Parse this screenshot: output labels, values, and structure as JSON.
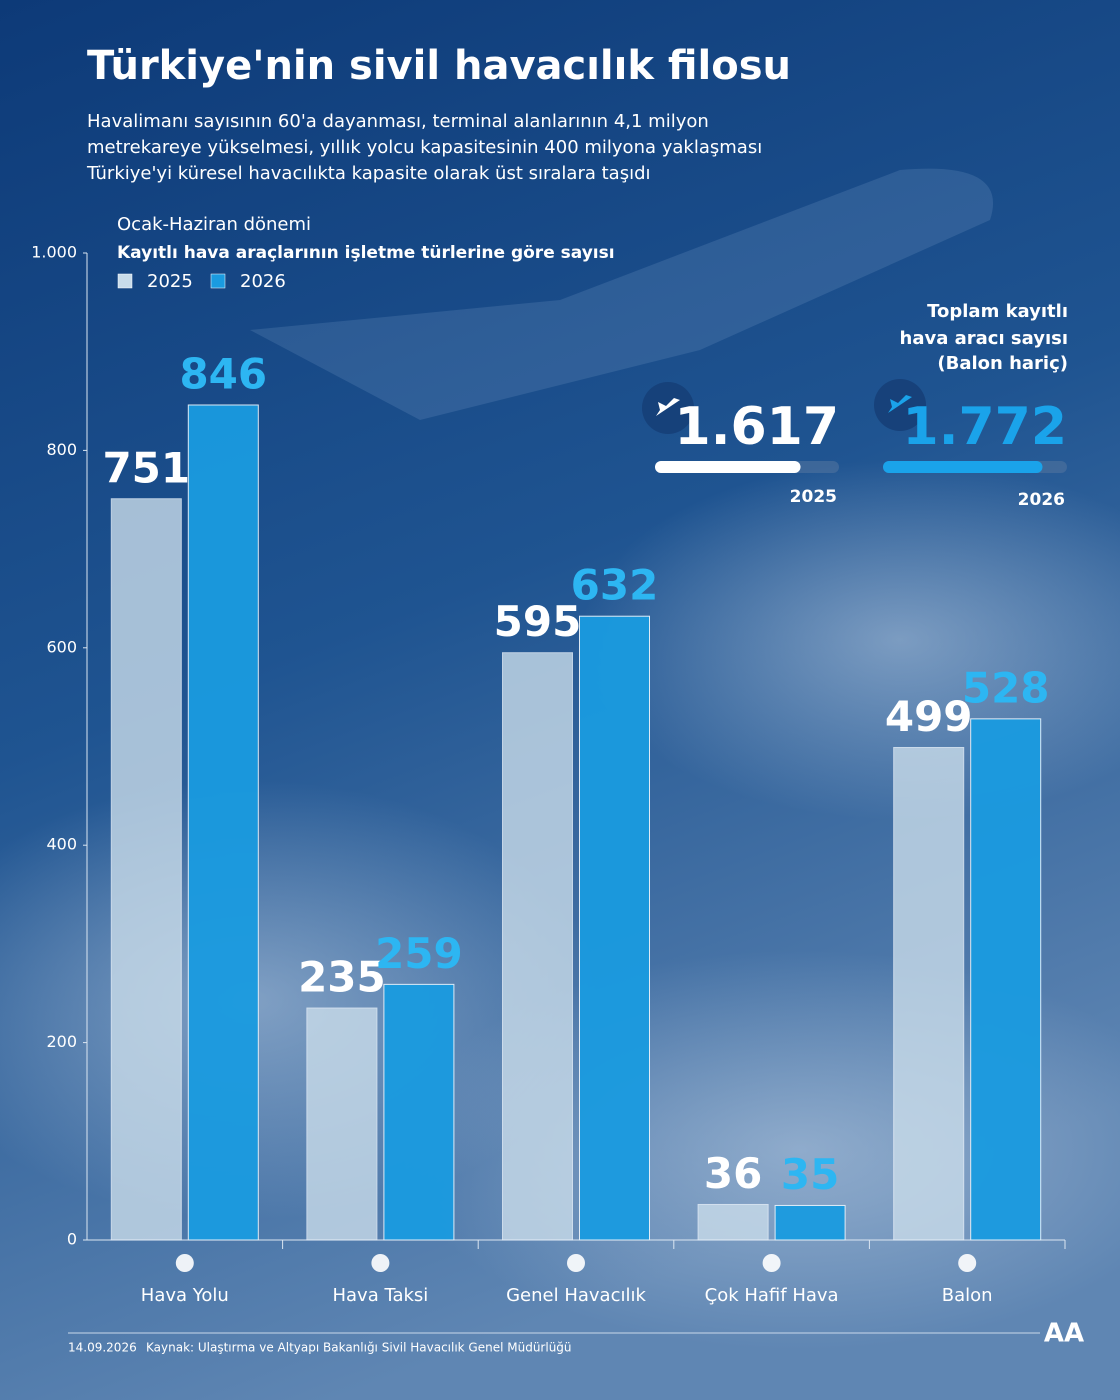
{
  "chart_data": {
    "type": "bar",
    "title": "Türkiye'nin sivil havacılık filosu",
    "subtitle": [
      "Havalimanı sayısının 60'a dayanması, terminal alanlarının 4,1 milyon",
      "metrekareye yükselmesi, yıllık yolcu kapasitesinin 400 milyona yaklaşması",
      "Türkiye'yi küresel havacılıkta kapasite olarak üst sıralara taşıdı"
    ],
    "period": "Ocak-Haziran dönemi",
    "chart_title": "Kayıtlı hava araçlarının işletme türlerine göre sayısı",
    "categories": [
      "Hava Yolu",
      "Hava Taksi",
      "Genel Havacılık",
      "Çok Hafif Hava",
      "Balon"
    ],
    "series": [
      {
        "name": "2025",
        "color": "#c9dcea",
        "label_color": "#ffffff",
        "values": [
          751,
          235,
          595,
          36,
          499
        ]
      },
      {
        "name": "2026",
        "color": "#1a9be0",
        "label_color": "#2db6f2",
        "values": [
          846,
          259,
          632,
          35,
          528
        ]
      }
    ],
    "ylim": [
      0,
      1000
    ],
    "yticks": [
      0,
      200,
      400,
      600,
      800,
      {
        "value": 1000,
        "label": "1.000"
      }
    ],
    "legend": "top-left"
  },
  "totals": {
    "title": [
      "Toplam kayıtlı",
      "hava aracı sayısı",
      "(Balon hariç)"
    ],
    "items": [
      {
        "value": 1617,
        "label": "1.617",
        "year": "2025",
        "color": "#ffffff"
      },
      {
        "value": 1772,
        "label": "1.772",
        "year": "2026",
        "color": "#1aa3ea"
      }
    ]
  },
  "footer": {
    "date": "14.09.2026",
    "source": "Kaynak: Ulaştırma ve Altyapı Bakanlığı Sivil Havacılık Genel Müdürlüğü",
    "logo": "AA"
  }
}
